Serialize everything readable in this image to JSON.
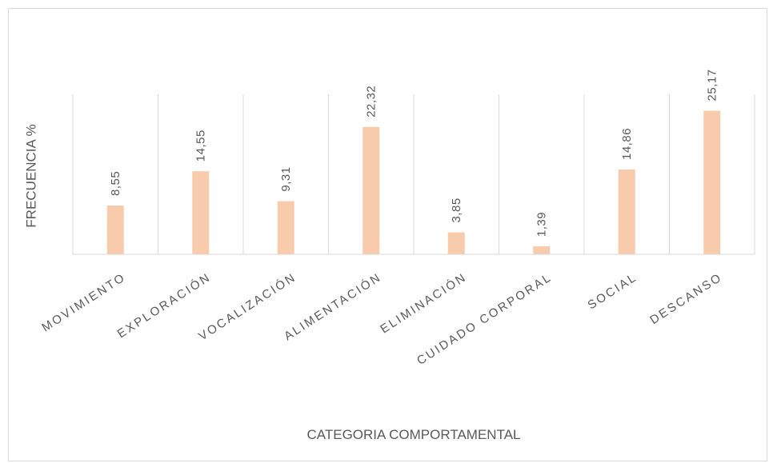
{
  "chart_data": {
    "type": "bar",
    "title": "",
    "xlabel": "CATEGORIA COMPORTAMENTAL",
    "ylabel": "FRECUENCIA %",
    "categories": [
      "MOVIMIENTO",
      "EXPLORACIÓN",
      "VOCALIZACIÓN",
      "ALIMENTACIÓN",
      "ELIMINACIÓN",
      "CUIDADO CORPORAL",
      "SOCIAL",
      "DESCANSO"
    ],
    "value_labels": [
      "8,55",
      "14,55",
      "9,31",
      "22,32",
      "3,85",
      "1,39",
      "14,86",
      "25,17"
    ],
    "values": [
      8.55,
      14.55,
      9.31,
      22.32,
      3.85,
      1.39,
      14.86,
      25.17
    ],
    "ylim": [
      0,
      30
    ],
    "grid": "vertical-category-separators",
    "legend": "none",
    "bar_color": "#f8cbad",
    "grid_color": "#d9d9d9",
    "text_color": "#595959"
  }
}
